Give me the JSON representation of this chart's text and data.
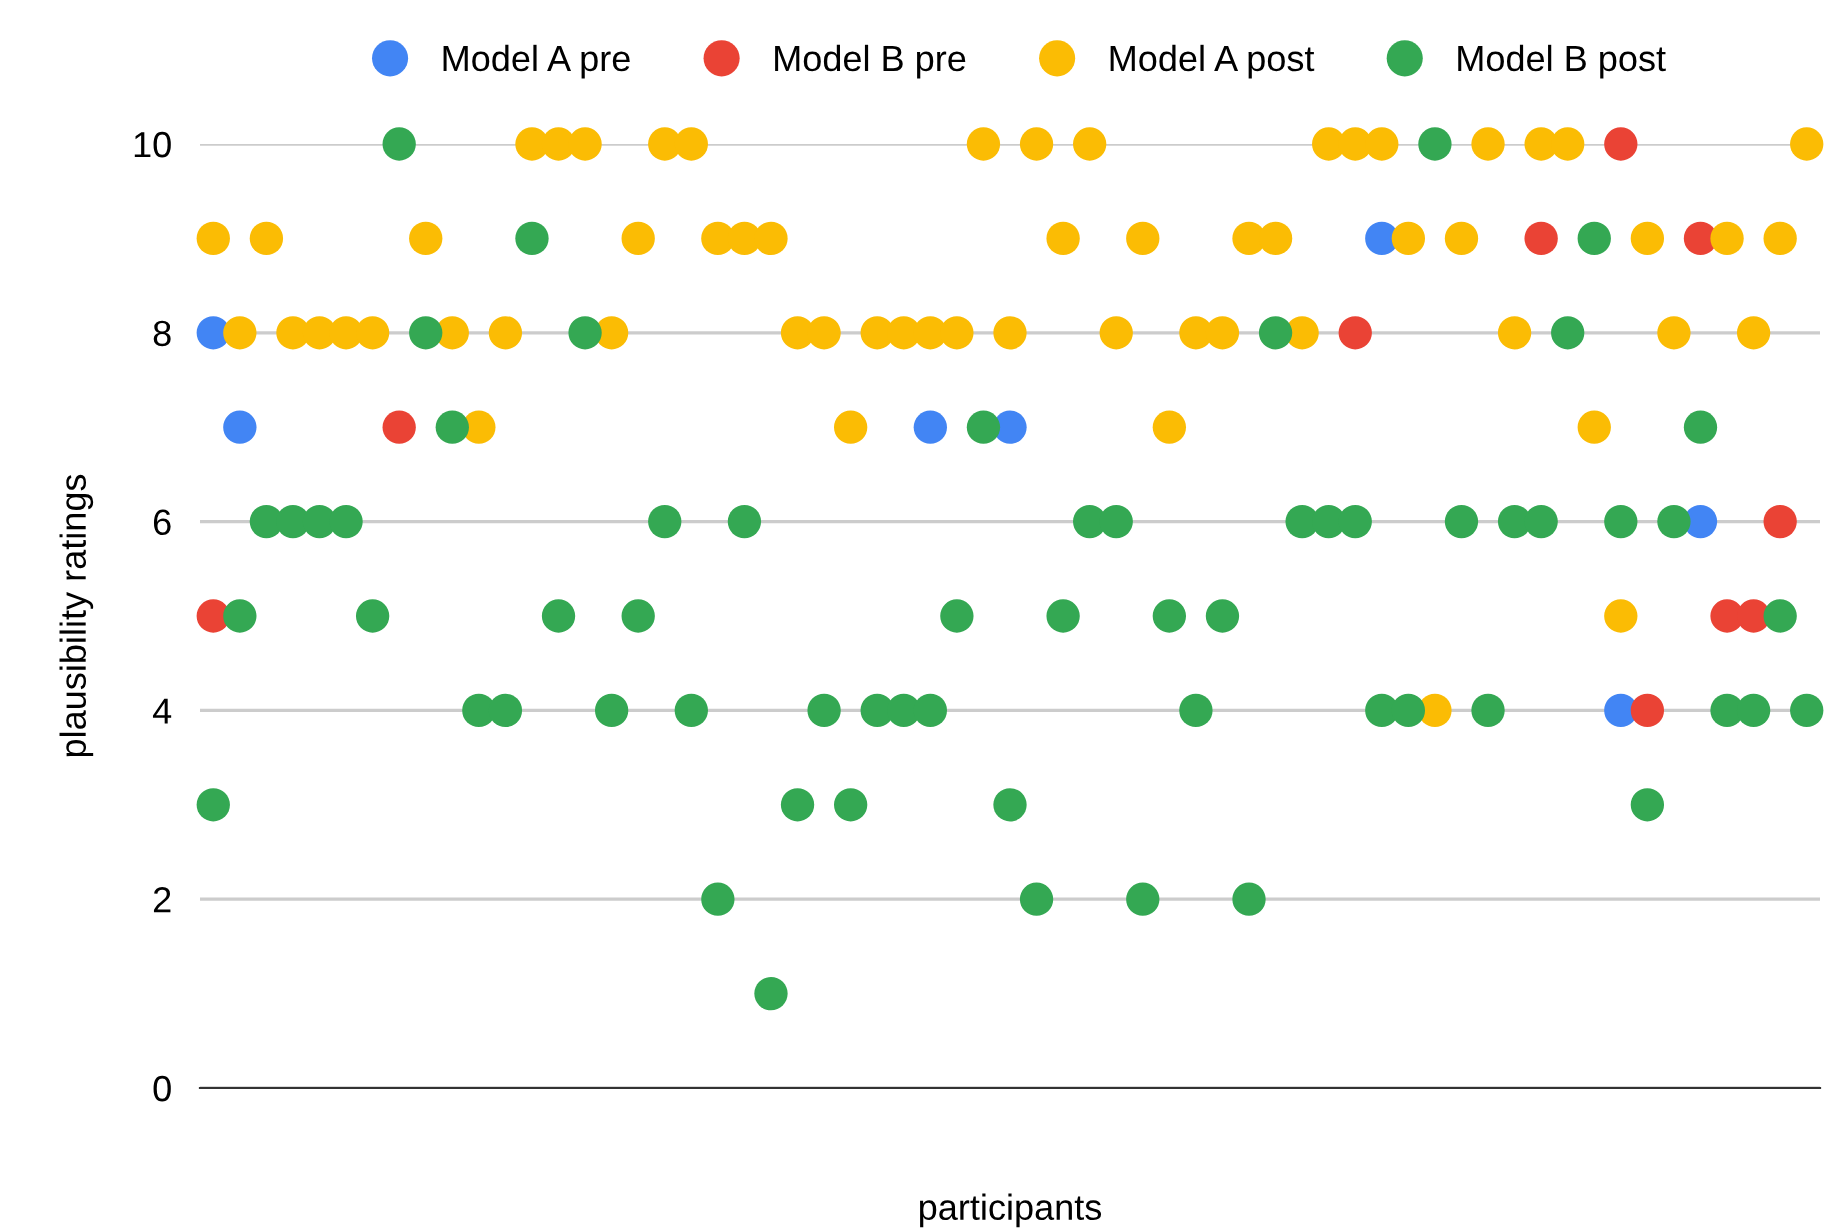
{
  "chart_data": {
    "type": "scatter",
    "xlabel": "participants",
    "ylabel": "plausibility ratings",
    "categories": [
      null,
      null,
      null,
      null,
      null,
      null,
      null,
      null,
      null,
      null,
      null,
      null,
      null,
      null,
      null,
      null,
      null,
      null,
      null,
      null,
      null,
      null,
      null,
      null,
      null,
      null,
      null,
      null,
      null,
      null,
      null,
      null,
      null,
      null,
      null,
      null,
      null,
      null,
      null,
      null,
      null,
      null,
      null,
      null,
      null,
      null,
      null,
      null,
      null,
      null,
      null,
      null,
      null,
      null,
      null,
      null,
      null,
      null,
      null,
      null,
      null
    ],
    "ylim": [
      0,
      10
    ],
    "yticks": [
      0,
      2,
      4,
      6,
      8,
      10
    ],
    "grid": "y",
    "legend": "top",
    "marker": "circle",
    "tick_labels": "y",
    "series": [
      {
        "name": "Model A pre",
        "color": "#4285f4",
        "values": [
          8,
          7,
          null,
          null,
          null,
          null,
          null,
          null,
          null,
          null,
          null,
          null,
          null,
          null,
          null,
          null,
          null,
          null,
          null,
          null,
          null,
          null,
          null,
          null,
          null,
          null,
          null,
          7,
          null,
          null,
          7,
          null,
          null,
          null,
          null,
          null,
          null,
          null,
          null,
          null,
          null,
          null,
          null,
          null,
          9,
          null,
          null,
          null,
          null,
          null,
          null,
          null,
          null,
          4,
          null,
          null,
          6,
          null,
          null,
          null,
          null
        ]
      },
      {
        "name": "Model B pre",
        "color": "#ea4335",
        "values": [
          5,
          null,
          null,
          null,
          null,
          null,
          null,
          7,
          null,
          null,
          null,
          null,
          null,
          null,
          null,
          null,
          null,
          null,
          null,
          null,
          null,
          null,
          null,
          null,
          null,
          null,
          null,
          null,
          null,
          null,
          null,
          null,
          null,
          null,
          null,
          null,
          null,
          null,
          null,
          null,
          null,
          null,
          null,
          8,
          null,
          null,
          null,
          null,
          null,
          null,
          9,
          null,
          null,
          10,
          4,
          null,
          9,
          5,
          5,
          6,
          null
        ]
      },
      {
        "name": "Model A post",
        "color": "#fbbc04",
        "values": [
          9,
          8,
          9,
          8,
          8,
          8,
          8,
          null,
          9,
          8,
          7,
          8,
          10,
          10,
          10,
          8,
          9,
          10,
          10,
          9,
          9,
          9,
          8,
          8,
          7,
          8,
          8,
          8,
          8,
          10,
          8,
          10,
          9,
          10,
          8,
          9,
          7,
          8,
          8,
          9,
          9,
          8,
          10,
          10,
          10,
          9,
          4,
          9,
          10,
          8,
          10,
          10,
          7,
          5,
          9,
          8,
          null,
          9,
          8,
          9,
          10
        ]
      },
      {
        "name": "Model B post",
        "color": "#34a853",
        "values": [
          3,
          5,
          6,
          6,
          6,
          6,
          5,
          10,
          8,
          7,
          4,
          4,
          9,
          5,
          8,
          4,
          5,
          6,
          4,
          2,
          6,
          1,
          3,
          4,
          3,
          4,
          4,
          4,
          5,
          7,
          3,
          2,
          5,
          6,
          6,
          2,
          5,
          4,
          5,
          2,
          8,
          6,
          6,
          6,
          4,
          4,
          10,
          6,
          4,
          6,
          6,
          8,
          9,
          6,
          3,
          6,
          7,
          4,
          4,
          5,
          4
        ]
      }
    ]
  }
}
